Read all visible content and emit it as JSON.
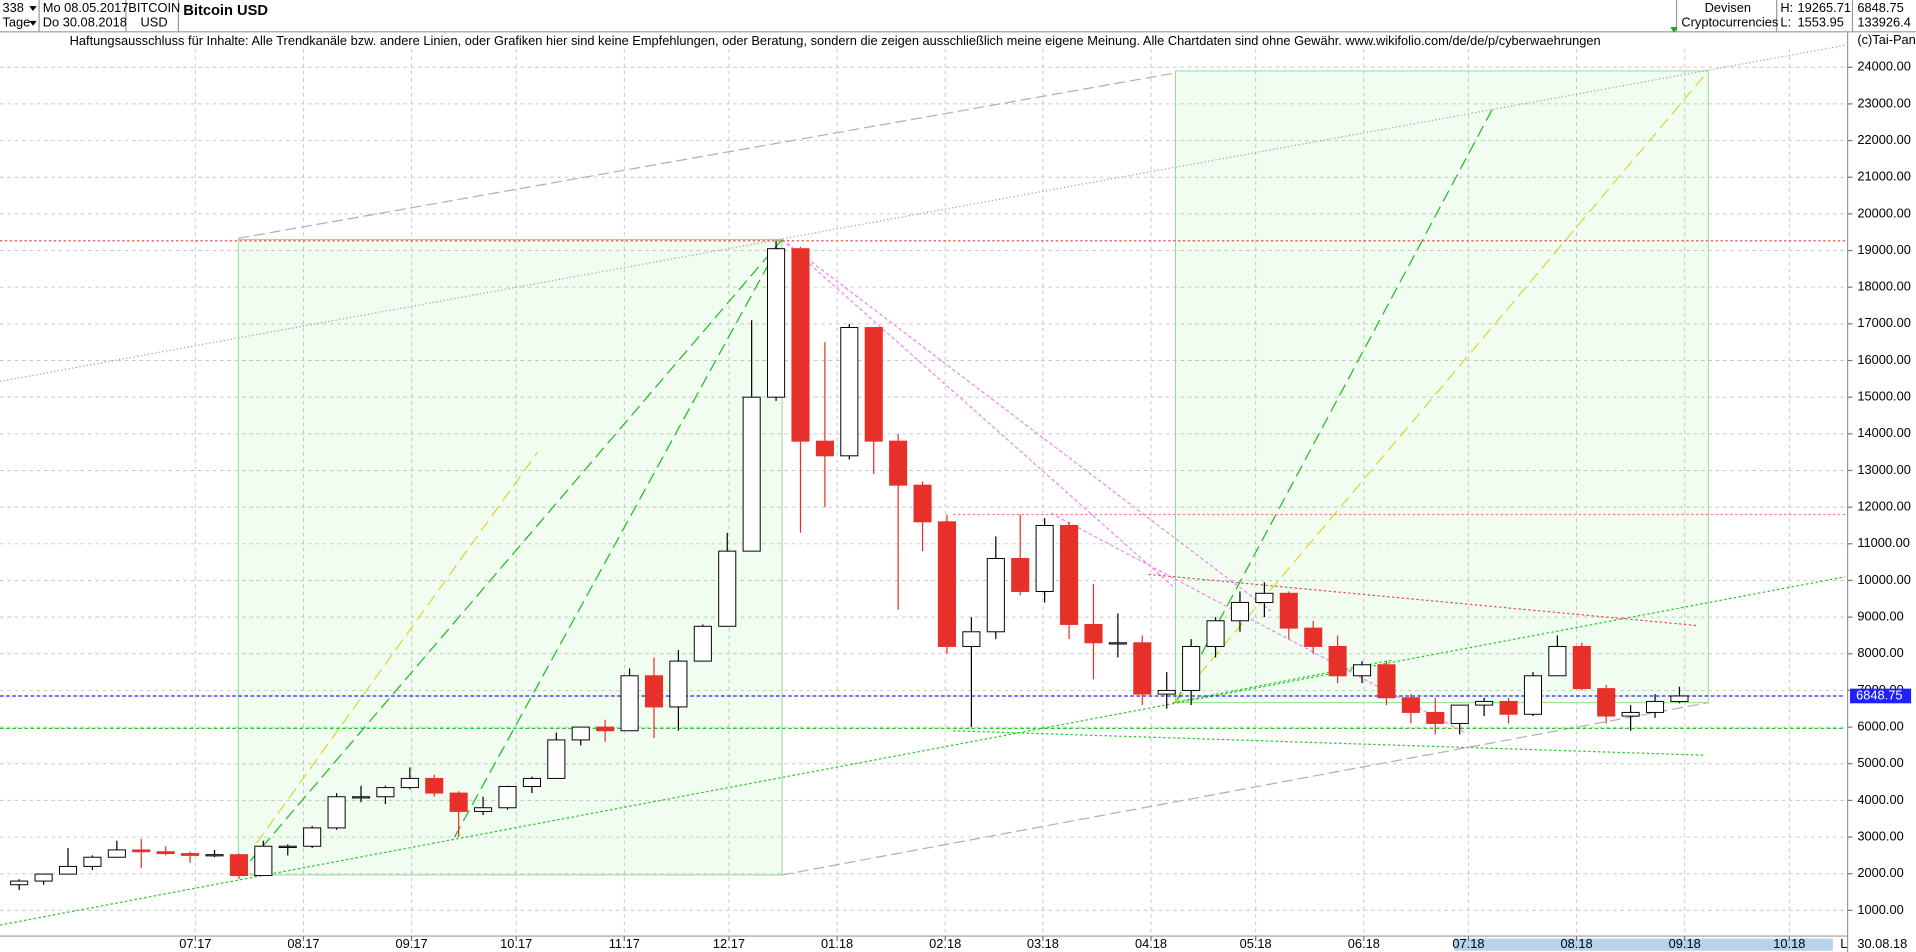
{
  "header": {
    "count": "338",
    "interval": "Tage",
    "start": "Mo 08.05.2017",
    "end": "Do 30.08.2018",
    "symbol": "BITCOIN",
    "currency": "USD",
    "group": "Devisen",
    "subgroup": "Cryptocurrencies",
    "high_label": "H:",
    "low_label": "L:",
    "volume": "133926.4",
    "disclaimer": "Haftungsausschluss für Inhalte: Alle Trendkanäle bzw. andere Linien, oder Grafiken hier sind keine Empfehlungen, oder Beratung, sondern die zeigen ausschließlich meine eigene Meinung. Alle Chartdaten sind ohne Gewähr.  www.wikifolio.com/de/de/p/cyberwaehrungen",
    "copyright": "(c)Tai-Pan",
    "axis_end_date": "30.08.18",
    "axis_end_marker": "L"
  },
  "chart_data": {
    "type": "candlestick",
    "title": "Bitcoin USD",
    "open": [
      1700,
      1800,
      1990,
      2200,
      2450,
      2650,
      2600,
      2550,
      2500,
      2520,
      1950,
      2750,
      2750,
      3250,
      4100,
      4100,
      4350,
      4600,
      4200,
      3700,
      3800,
      4380,
      4600,
      5650,
      6000,
      5900,
      7400,
      6550,
      7800,
      8750,
      10800,
      15000,
      19050,
      13800,
      13400,
      16900,
      13800,
      12600,
      11600,
      8200,
      8600,
      10600,
      9700,
      11500,
      8800,
      8300,
      8300,
      6900,
      7000,
      8200,
      8900,
      9400,
      9650,
      8700,
      8200,
      7400,
      7700,
      6800,
      6400,
      6100,
      6600,
      6700,
      6350,
      7400,
      8200,
      7050,
      6300,
      6400,
      6700
    ],
    "high": [
      1850,
      2000,
      2700,
      2500,
      2900,
      2950,
      2750,
      2600,
      2650,
      2550,
      2900,
      2800,
      3300,
      4200,
      4400,
      4400,
      4900,
      4700,
      4250,
      4100,
      4400,
      4650,
      5850,
      6000,
      6200,
      7600,
      7900,
      8100,
      8800,
      11300,
      17100,
      19265.71,
      19100,
      16500,
      17000,
      16900,
      14000,
      12700,
      11800,
      9000,
      11200,
      11800,
      11700,
      11600,
      9900,
      9100,
      8500,
      7500,
      8400,
      9000,
      9700,
      9950,
      9700,
      8900,
      8500,
      7800,
      7800,
      6900,
      6800,
      6600,
      6800,
      6800,
      7500,
      8500,
      8300,
      7150,
      6600,
      6900,
      7100
    ],
    "low": [
      1553.95,
      1700,
      1990,
      2100,
      2450,
      2150,
      2500,
      2300,
      2450,
      1850,
      1950,
      2500,
      2700,
      3200,
      3950,
      3900,
      4300,
      4100,
      3000,
      3600,
      3750,
      4200,
      4600,
      5500,
      5600,
      5900,
      5700,
      5900,
      7800,
      8750,
      10800,
      14900,
      11300,
      12000,
      13300,
      12900,
      9200,
      10800,
      8000,
      6000,
      8400,
      9600,
      9400,
      8400,
      7300,
      7900,
      6600,
      6500,
      6600,
      7900,
      8600,
      9000,
      8400,
      8000,
      7200,
      7200,
      6600,
      6100,
      5800,
      5800,
      6300,
      6100,
      6300,
      7400,
      7000,
      6100,
      5900,
      6250,
      6650
    ],
    "close": [
      1800,
      1990,
      2200,
      2450,
      2650,
      2600,
      2550,
      2500,
      2520,
      1950,
      2750,
      2750,
      3250,
      4100,
      4100,
      4350,
      4600,
      4200,
      3700,
      3800,
      4380,
      4600,
      5650,
      6000,
      5900,
      7400,
      6550,
      7800,
      8750,
      10800,
      15000,
      19050,
      13800,
      13400,
      16900,
      13800,
      12600,
      11600,
      8200,
      8600,
      10600,
      9700,
      11500,
      8800,
      8300,
      8300,
      6900,
      7000,
      8200,
      8900,
      9400,
      9650,
      8700,
      8200,
      7400,
      7700,
      6800,
      6400,
      6100,
      6600,
      6700,
      6350,
      7400,
      8200,
      7050,
      6300,
      6400,
      6700,
      6848.75
    ],
    "up_color": "#ffffff",
    "down_color": "#e8302a",
    "outline_color": "#000000",
    "last_line_color": "#2020ff",
    "high_line_color": "#e84040",
    "xlim": [
      -2,
      527
    ],
    "xticks": [
      {
        "value": 54,
        "label": "07.17"
      },
      {
        "value": 85,
        "label": "08.17"
      },
      {
        "value": 116,
        "label": "09.17"
      },
      {
        "value": 146,
        "label": "10.17"
      },
      {
        "value": 177,
        "label": "11.17"
      },
      {
        "value": 207,
        "label": "12.17"
      },
      {
        "value": 238,
        "label": "01.18"
      },
      {
        "value": 269,
        "label": "02.18"
      },
      {
        "value": 297,
        "label": "03.18"
      },
      {
        "value": 328,
        "label": "04.18"
      },
      {
        "value": 358,
        "label": "05.18"
      },
      {
        "value": 389,
        "label": "06.18"
      },
      {
        "value": 419,
        "label": "07.18"
      },
      {
        "value": 450,
        "label": "08.18"
      },
      {
        "value": 481,
        "label": "09.18"
      },
      {
        "value": 511,
        "label": "10.18"
      }
    ],
    "ylim": [
      333,
      24933
    ],
    "yticks": [
      {
        "value": 1000,
        "label": "1000.00"
      },
      {
        "value": 2000,
        "label": "2000.00"
      },
      {
        "value": 3000,
        "label": "3000.00"
      },
      {
        "value": 4000,
        "label": "4000.00"
      },
      {
        "value": 5000,
        "label": "5000.00"
      },
      {
        "value": 6000,
        "label": "6000.00"
      },
      {
        "value": 7000,
        "label": "7000.00"
      },
      {
        "value": 8000,
        "label": "8000.00"
      },
      {
        "value": 9000,
        "label": "9000.00"
      },
      {
        "value": 10000,
        "label": "10000.00"
      },
      {
        "value": 11000,
        "label": "11000.00"
      },
      {
        "value": 12000,
        "label": "12000.00"
      },
      {
        "value": 13000,
        "label": "13000.00"
      },
      {
        "value": 14000,
        "label": "14000.00"
      },
      {
        "value": 15000,
        "label": "15000.00"
      },
      {
        "value": 16000,
        "label": "16000.00"
      },
      {
        "value": 17000,
        "label": "17000.00"
      },
      {
        "value": 18000,
        "label": "18000.00"
      },
      {
        "value": 19000,
        "label": "19000.00"
      },
      {
        "value": 20000,
        "label": "20000.00"
      },
      {
        "value": 21000,
        "label": "21000.00"
      },
      {
        "value": 22000,
        "label": "22000.00"
      },
      {
        "value": 23000,
        "label": "23000.00"
      },
      {
        "value": 24000,
        "label": "24000.00"
      }
    ],
    "grid": true
  }
}
